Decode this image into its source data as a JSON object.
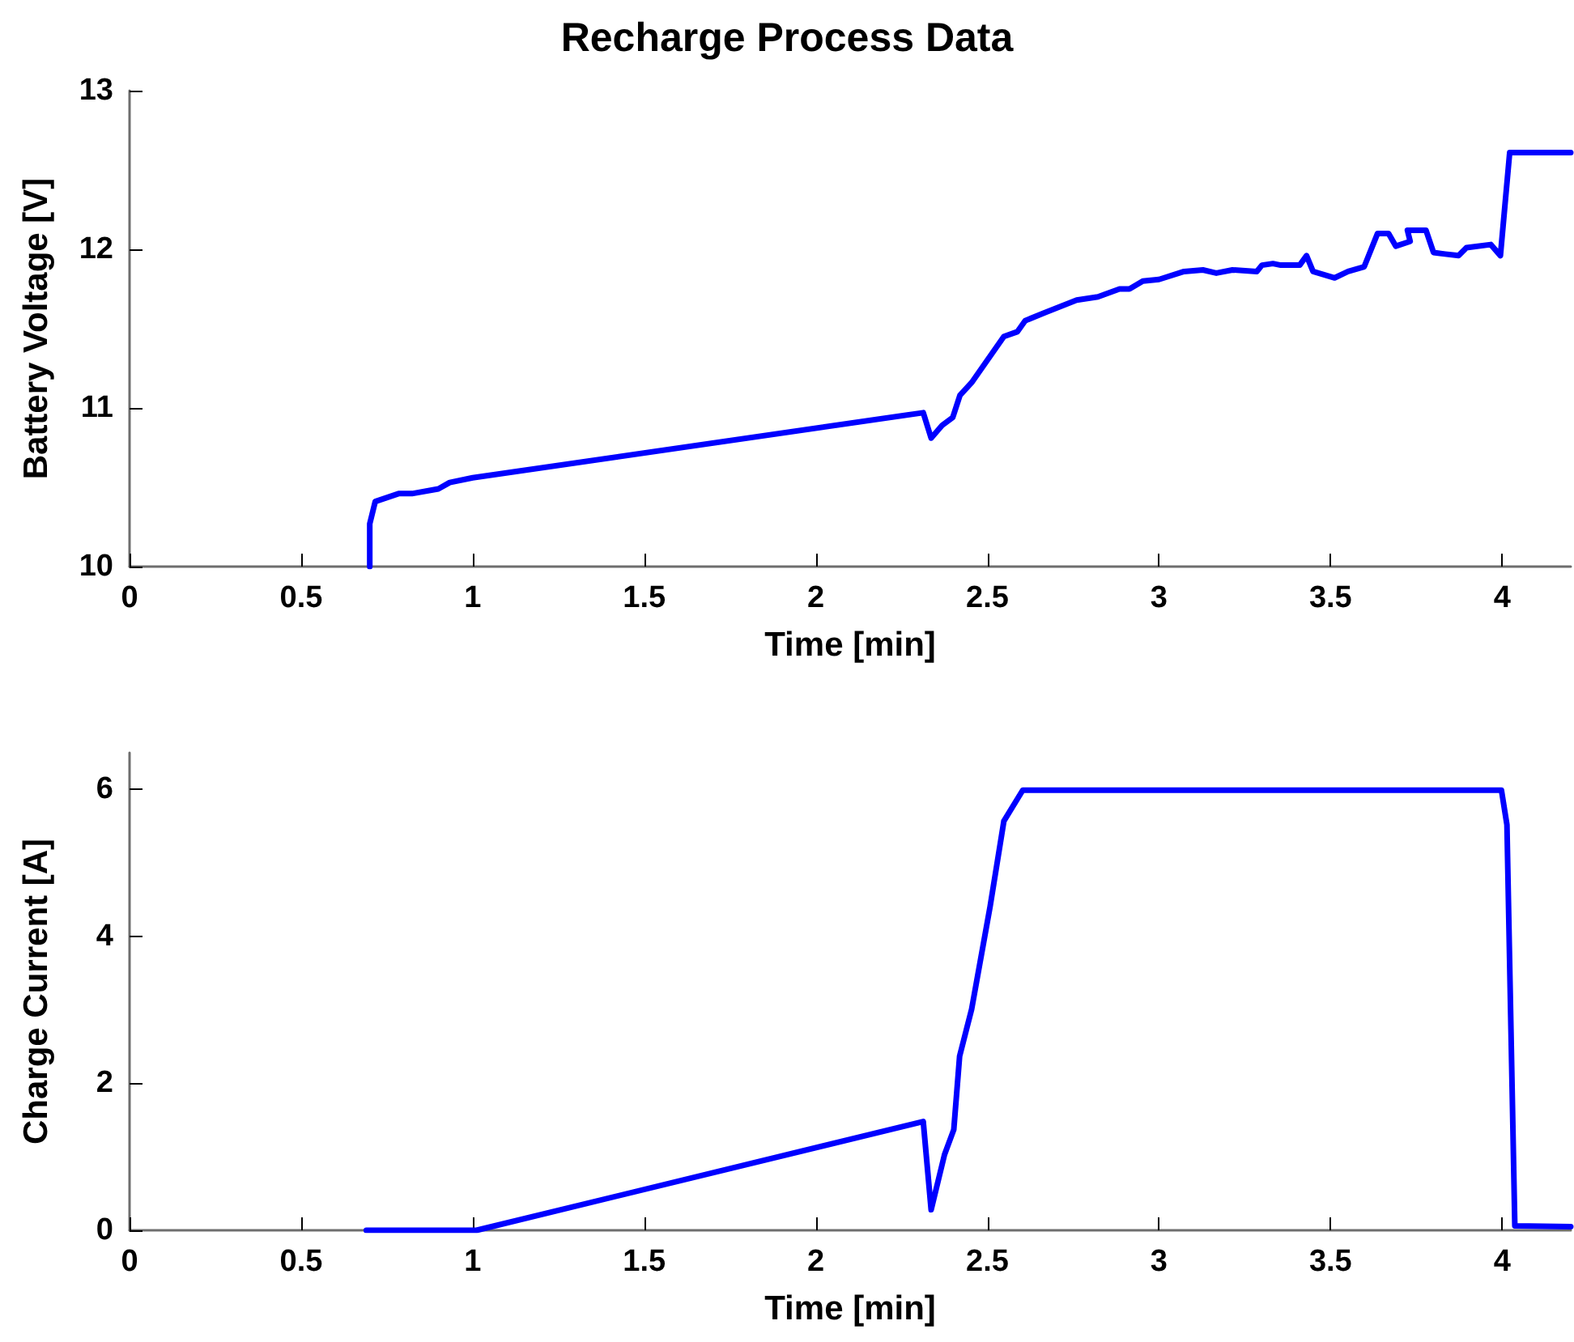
{
  "chart_data": [
    {
      "type": "line",
      "title": "Recharge Process Data",
      "xlabel": "Time [min]",
      "ylabel": "Battery Voltage [V]",
      "x": [
        0.7,
        0.7,
        0.716,
        0.784,
        0.823,
        0.9,
        0.933,
        1.0,
        2.313,
        2.336,
        2.368,
        2.399,
        2.42,
        2.454,
        2.548,
        2.587,
        2.61,
        2.666,
        2.76,
        2.822,
        2.885,
        2.914,
        2.953,
        3.0,
        3.073,
        3.128,
        3.167,
        3.214,
        3.285,
        3.3,
        3.332,
        3.355,
        3.41,
        3.43,
        3.449,
        3.512,
        3.551,
        3.598,
        3.637,
        3.669,
        3.69,
        3.732,
        3.724,
        3.778,
        3.8,
        3.834,
        3.873,
        3.896,
        3.967,
        3.995,
        4.022,
        4.2
      ],
      "series": [
        {
          "color": "#0000ff",
          "values": [
            10.0,
            10.27,
            10.41,
            10.46,
            10.46,
            10.49,
            10.53,
            10.56,
            10.97,
            10.81,
            10.89,
            10.94,
            11.08,
            11.16,
            11.45,
            11.48,
            11.55,
            11.6,
            11.68,
            11.7,
            11.75,
            11.75,
            11.8,
            11.81,
            11.86,
            11.87,
            11.85,
            11.87,
            11.86,
            11.9,
            11.91,
            11.9,
            11.9,
            11.96,
            11.86,
            11.82,
            11.86,
            11.89,
            12.1,
            12.1,
            12.02,
            12.05,
            12.12,
            12.12,
            11.98,
            11.97,
            11.96,
            12.01,
            12.03,
            11.96,
            12.61,
            12.61
          ]
        }
      ],
      "xlim": [
        0,
        4.2
      ],
      "xticks": [
        0,
        0.5,
        1,
        1.5,
        2,
        2.5,
        3,
        3.5,
        4
      ],
      "ylim": [
        10,
        13
      ],
      "yticks": [
        10,
        11,
        12,
        13
      ]
    },
    {
      "type": "line",
      "xlabel": "Time [min]",
      "ylabel": "Charge Current [A]",
      "x": [
        0.69,
        1.011,
        2.313,
        2.336,
        2.375,
        2.402,
        2.419,
        2.454,
        2.508,
        2.548,
        2.603,
        3.998,
        4.014,
        4.037,
        4.2
      ],
      "series": [
        {
          "color": "#0000ff",
          "values": [
            0,
            0,
            1.48,
            0.28,
            1.03,
            1.37,
            2.37,
            3.01,
            4.41,
            5.57,
            5.99,
            5.99,
            5.52,
            0.06,
            0.05
          ]
        }
      ],
      "xlim": [
        0,
        4.2
      ],
      "xticks": [
        0,
        0.5,
        1,
        1.5,
        2,
        2.5,
        3,
        3.5,
        4
      ],
      "ylim": [
        0,
        6.5
      ],
      "yticks": [
        0,
        2,
        4,
        6
      ]
    }
  ]
}
